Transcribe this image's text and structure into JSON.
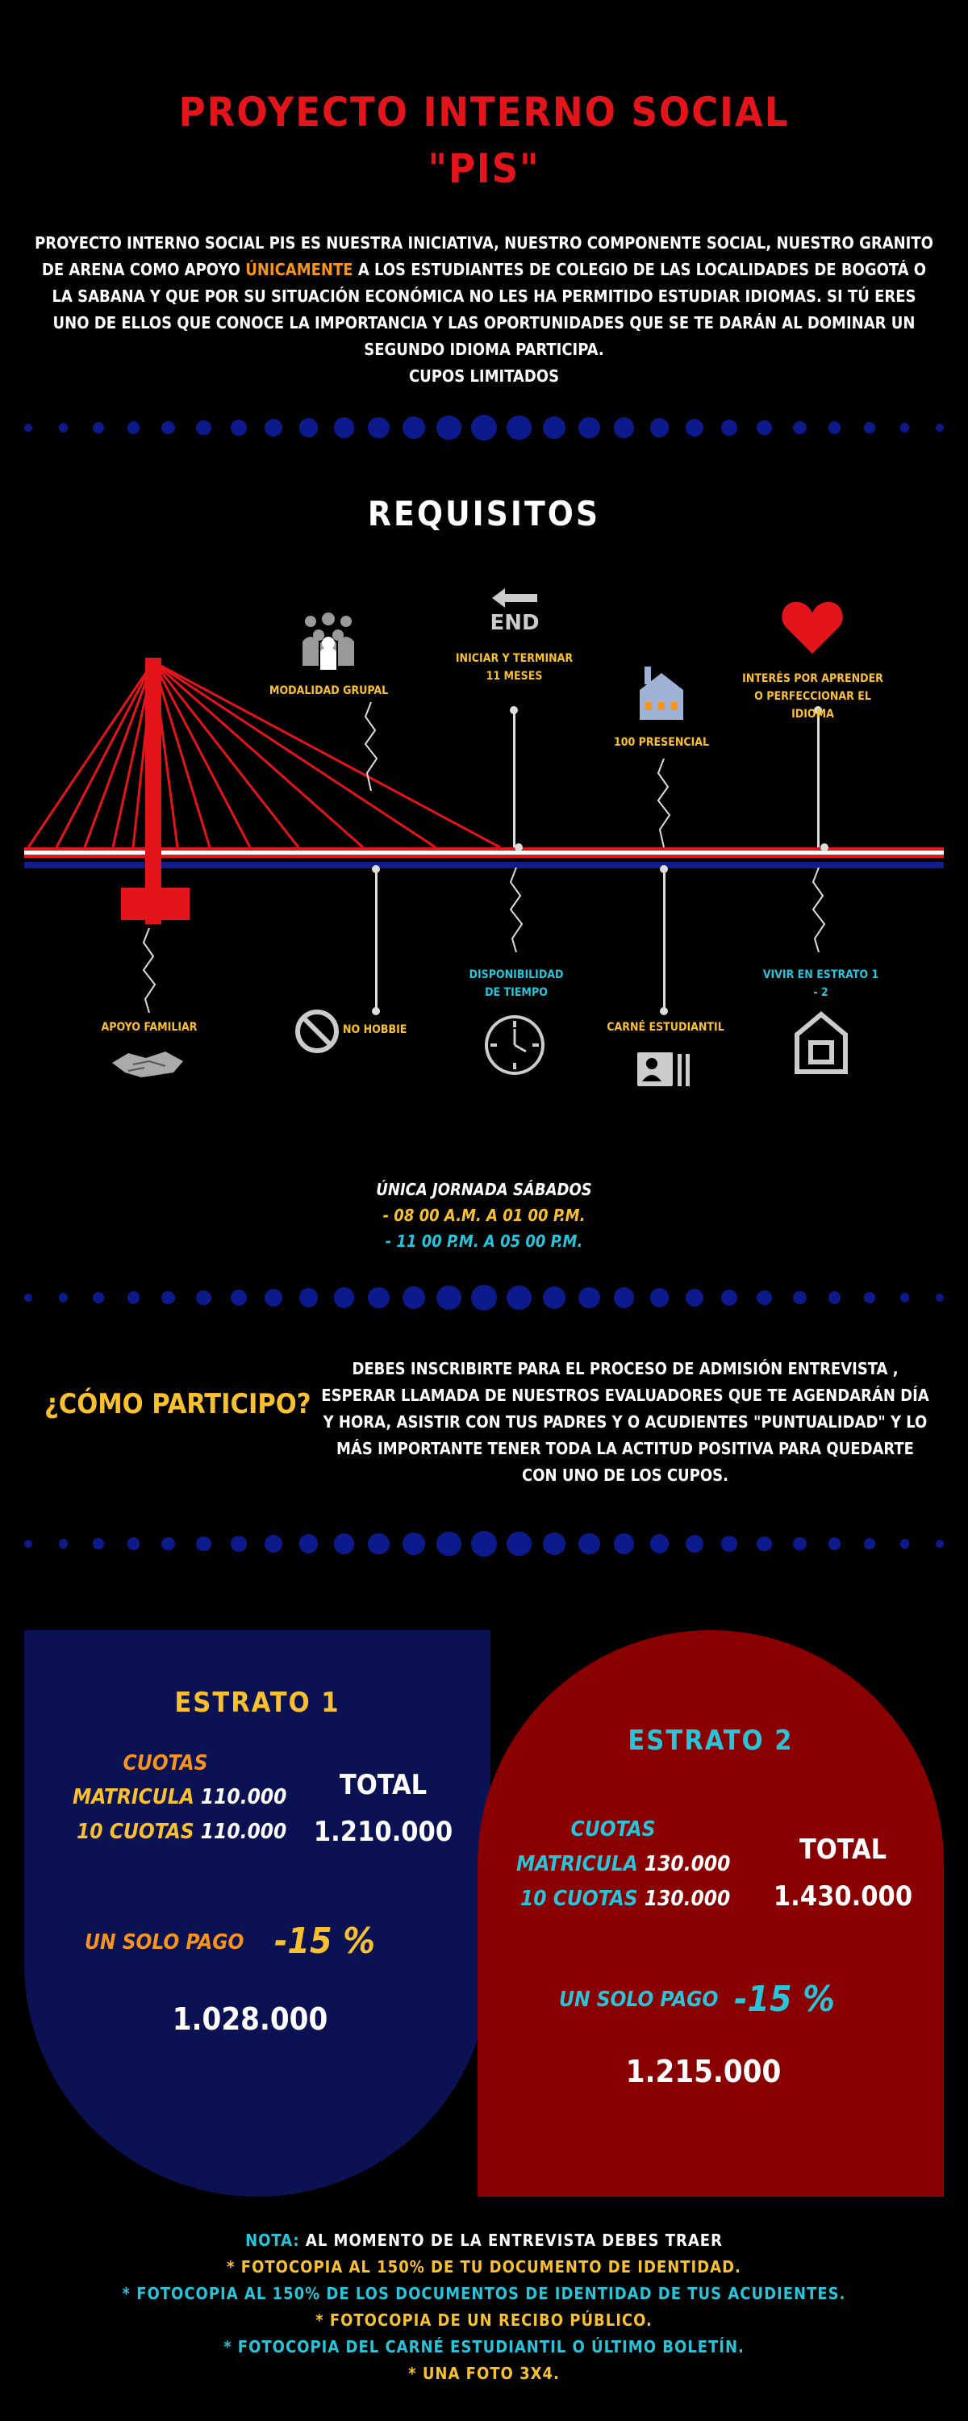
{
  "title_line1": "PROYECTO INTERNO SOCIAL",
  "title_line2": "\"PIS\"",
  "intro": {
    "part1": "PROYECTO INTERNO SOCIAL  PIS  ES NUESTRA INICIATIVA, NUESTRO COMPONENTE SOCIAL, NUESTRO GRANITO DE ARENA COMO APOYO ",
    "highlight": "ÚNICAMENTE",
    "part2": " A LOS ESTUDIANTES DE COLEGIO DE LAS LOCALIDADES DE BOGOTÁ O LA SABANA Y QUE POR SU SITUACIÓN ECONÓMICA NO LES HA PERMITIDO ESTUDIAR IDIOMAS. SI TÚ ERES UNO DE ELLOS QUE CONOCE LA IMPORTANCIA Y LAS OPORTUNIDADES QUE SE TE DARÁN AL DOMINAR UN SEGUNDO IDIOMA PARTICIPA.",
    "part3": "CUPOS LIMITADOS"
  },
  "requisitos_title": "REQUISITOS",
  "requirements_top": [
    {
      "label": "MODALIDAD GRUPAL",
      "icon": "group-icon"
    },
    {
      "label": "INICIAR Y TERMINAR 11 MESES",
      "icon": "end-arrow-icon",
      "icon_text": "END"
    },
    {
      "label": "100 PRESENCIAL",
      "icon": "house-icon"
    },
    {
      "label": "INTERÉS POR APRENDER O PERFECCIONAR EL IDIOMA",
      "icon": "heart-icon"
    }
  ],
  "requirements_bottom": [
    {
      "label": "APOYO FAMILIAR",
      "icon": "handshake-icon"
    },
    {
      "label": "NO HOBBIE",
      "icon": "prohibited-icon"
    },
    {
      "label": "DISPONIBILIDAD DE TIEMPO",
      "icon": "clock-icon"
    },
    {
      "label": "CARNÉ ESTUDIANTIL",
      "icon": "id-card-icon"
    },
    {
      "label": "VIVIR EN ESTRATO 1 - 2",
      "icon": "home-icon"
    }
  ],
  "schedule": {
    "line1": "ÚNICA JORNADA SÁBADOS",
    "line2": "- 08 00 A.M. A 01 00 P.M.",
    "line3": "- 11 00 P.M. A 05 00 P.M."
  },
  "como": {
    "title": "¿CÓMO PARTICIPO?",
    "text": "DEBES INSCRIBIRTE PARA EL PROCESO DE ADMISIÓN  ENTREVISTA , ESPERAR LLAMADA DE NUESTROS EVALUADORES QUE TE AGENDARÁN DÍA Y HORA, ASISTIR CON TUS PADRES Y O ACUDIENTES \"PUNTUALIDAD\" Y LO MÁS IMPORTANTE TENER TODA LA ACTITUD POSITIVA PARA QUEDARTE CON UNO DE LOS CUPOS."
  },
  "estrato1": {
    "title": "ESTRATO 1",
    "cuotas": "CUOTAS",
    "matricula_label": "MATRICULA",
    "matricula_value": "110.000",
    "cuotas10_label": "10 CUOTAS",
    "cuotas10_value": "110.000",
    "total_label": "TOTAL",
    "total_value": "1.210.000",
    "solo_pago": "UN SOLO PAGO",
    "discount": "-15 %",
    "final": "1.028.000"
  },
  "estrato2": {
    "title": "ESTRATO 2",
    "cuotas": "CUOTAS",
    "matricula_label": "MATRICULA",
    "matricula_value": "130.000",
    "cuotas10_label": "10 CUOTAS",
    "cuotas10_value": "130.000",
    "total_label": "TOTAL",
    "total_value": "1.430.000",
    "solo_pago": "UN SOLO PAGO",
    "discount": "-15 %",
    "final": "1.215.000"
  },
  "note": {
    "label": "NOTA:",
    "text": " AL MOMENTO DE LA ENTREVISTA DEBES TRAER",
    "items": [
      "* FOTOCOPIA AL 150% DE TU DOCUMENTO DE IDENTIDAD.",
      "* FOTOCOPIA AL 150% DE LOS DOCUMENTOS DE IDENTIDAD DE TUS ACUDIENTES.",
      "* FOTOCOPIA DE UN RECIBO PÚBLICO.",
      "* FOTOCOPIA DEL CARNÉ ESTUDIANTIL O ÚLTIMO BOLETÍN.",
      "* UNA FOTO 3X4."
    ]
  },
  "colors": {
    "red": "#e4141b",
    "navy": "#0b1254",
    "dark_red": "#8a0000",
    "yellow": "#fbc02d",
    "cyan": "#29c4d9",
    "orange": "#f7941d"
  }
}
